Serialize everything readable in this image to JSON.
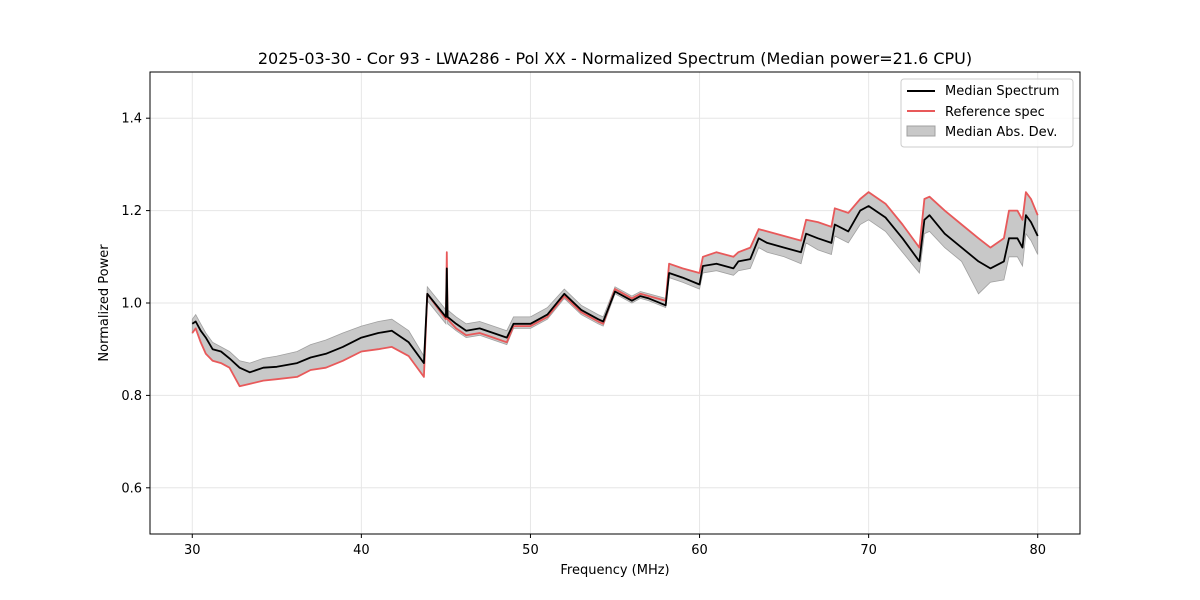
{
  "chart_data": {
    "type": "line",
    "title": "2025-03-30 - Cor 93 - LWA286 - Pol XX - Normalized Spectrum (Median power=21.6 CPU)",
    "xlabel": "Frequency (MHz)",
    "ylabel": "Normalized Power",
    "xlim": [
      27.5,
      82.5
    ],
    "ylim": [
      0.5,
      1.5
    ],
    "x_ticks": [
      30,
      40,
      50,
      60,
      70,
      80
    ],
    "x_tick_labels": [
      "30",
      "40",
      "50",
      "60",
      "70",
      "80"
    ],
    "y_ticks": [
      0.6,
      0.8,
      1.0,
      1.2,
      1.4
    ],
    "y_tick_labels": [
      "0.6",
      "0.8",
      "1.0",
      "1.2",
      "1.4"
    ],
    "grid": true,
    "legend_position": "top-right",
    "colors": {
      "median": "#000000",
      "reference": "#e8595a",
      "mad_fill": "#c8c8c8",
      "mad_edge": "#a0a0a0"
    },
    "series": [
      {
        "name": "Median Spectrum",
        "x": [
          30.0,
          30.2,
          30.5,
          30.8,
          31.2,
          31.7,
          32.2,
          32.8,
          33.4,
          34.2,
          35.0,
          36.2,
          37.0,
          37.9,
          38.9,
          40.0,
          41.0,
          41.8,
          42.8,
          43.7,
          43.9,
          45.0,
          45.05,
          45.1,
          45.6,
          46.2,
          47.0,
          47.8,
          48.6,
          49.0,
          50.0,
          51.0,
          52.0,
          53.0,
          54.0,
          54.3,
          55.0,
          56.0,
          56.5,
          57.0,
          58.0,
          58.2,
          59.0,
          60.0,
          60.2,
          61.0,
          62.0,
          62.3,
          63.0,
          63.5,
          64.0,
          65.0,
          66.0,
          66.3,
          67.0,
          67.8,
          68.0,
          68.8,
          69.5,
          70.0,
          71.0,
          72.0,
          73.0,
          73.3,
          73.6,
          74.5,
          75.5,
          76.5,
          77.2,
          78.0,
          78.3,
          78.8,
          79.1,
          79.3,
          79.6,
          80.0
        ],
        "y": [
          0.955,
          0.96,
          0.94,
          0.925,
          0.9,
          0.895,
          0.88,
          0.86,
          0.85,
          0.86,
          0.862,
          0.87,
          0.882,
          0.89,
          0.905,
          0.925,
          0.935,
          0.94,
          0.915,
          0.87,
          1.02,
          0.97,
          1.075,
          0.97,
          0.955,
          0.94,
          0.945,
          0.935,
          0.925,
          0.955,
          0.955,
          0.975,
          1.02,
          0.985,
          0.965,
          0.96,
          1.025,
          1.005,
          1.015,
          1.01,
          0.995,
          1.065,
          1.055,
          1.04,
          1.08,
          1.085,
          1.075,
          1.09,
          1.095,
          1.14,
          1.13,
          1.12,
          1.11,
          1.15,
          1.14,
          1.13,
          1.17,
          1.155,
          1.2,
          1.21,
          1.185,
          1.14,
          1.09,
          1.18,
          1.19,
          1.15,
          1.12,
          1.09,
          1.075,
          1.09,
          1.14,
          1.14,
          1.12,
          1.19,
          1.175,
          1.145
        ]
      },
      {
        "name": "Reference spec",
        "x": [
          30.0,
          30.2,
          30.5,
          30.8,
          31.2,
          31.7,
          32.2,
          32.8,
          33.4,
          34.2,
          35.0,
          36.2,
          37.0,
          37.9,
          38.9,
          40.0,
          41.0,
          41.8,
          42.8,
          43.7,
          43.9,
          45.0,
          45.05,
          45.1,
          45.6,
          46.2,
          47.0,
          47.8,
          48.6,
          49.0,
          50.0,
          51.0,
          52.0,
          53.0,
          54.0,
          54.3,
          55.0,
          56.0,
          56.5,
          57.0,
          58.0,
          58.2,
          59.0,
          60.0,
          60.2,
          61.0,
          62.0,
          62.3,
          63.0,
          63.5,
          64.0,
          65.0,
          66.0,
          66.3,
          67.0,
          67.8,
          68.0,
          68.8,
          69.5,
          70.0,
          71.0,
          72.0,
          73.0,
          73.3,
          73.6,
          74.5,
          75.5,
          76.5,
          77.2,
          78.0,
          78.3,
          78.8,
          79.1,
          79.3,
          79.6,
          80.0
        ],
        "y": [
          0.935,
          0.945,
          0.915,
          0.89,
          0.875,
          0.87,
          0.86,
          0.82,
          0.825,
          0.832,
          0.835,
          0.84,
          0.855,
          0.86,
          0.875,
          0.895,
          0.9,
          0.905,
          0.885,
          0.84,
          1.02,
          0.965,
          1.11,
          0.965,
          0.945,
          0.93,
          0.935,
          0.925,
          0.915,
          0.95,
          0.95,
          0.97,
          1.015,
          0.98,
          0.96,
          0.955,
          1.03,
          1.01,
          1.02,
          1.015,
          1.005,
          1.085,
          1.075,
          1.065,
          1.1,
          1.11,
          1.1,
          1.11,
          1.12,
          1.16,
          1.155,
          1.145,
          1.135,
          1.18,
          1.175,
          1.165,
          1.205,
          1.195,
          1.225,
          1.24,
          1.215,
          1.17,
          1.12,
          1.225,
          1.23,
          1.2,
          1.17,
          1.14,
          1.12,
          1.14,
          1.2,
          1.2,
          1.18,
          1.24,
          1.225,
          1.19
        ]
      },
      {
        "name": "Median Abs. Dev.",
        "x": [
          30.0,
          30.2,
          30.5,
          30.8,
          31.2,
          31.7,
          32.2,
          32.8,
          33.4,
          34.2,
          35.0,
          36.2,
          37.0,
          37.9,
          38.9,
          40.0,
          41.0,
          41.8,
          42.8,
          43.7,
          43.9,
          45.0,
          45.05,
          45.1,
          45.6,
          46.2,
          47.0,
          47.8,
          48.6,
          49.0,
          50.0,
          51.0,
          52.0,
          53.0,
          54.0,
          54.3,
          55.0,
          56.0,
          56.5,
          57.0,
          58.0,
          58.2,
          59.0,
          60.0,
          60.2,
          61.0,
          62.0,
          62.3,
          63.0,
          63.5,
          64.0,
          65.0,
          66.0,
          66.3,
          67.0,
          67.8,
          68.0,
          68.8,
          69.5,
          70.0,
          71.0,
          72.0,
          73.0,
          73.3,
          73.6,
          74.5,
          75.5,
          76.5,
          77.2,
          78.0,
          78.3,
          78.8,
          79.1,
          79.3,
          79.6,
          80.0
        ],
        "lower": [
          0.935,
          0.945,
          0.915,
          0.89,
          0.875,
          0.87,
          0.86,
          0.82,
          0.825,
          0.832,
          0.835,
          0.84,
          0.855,
          0.86,
          0.875,
          0.895,
          0.9,
          0.905,
          0.885,
          0.84,
          1.005,
          0.955,
          1.06,
          0.955,
          0.94,
          0.925,
          0.93,
          0.92,
          0.91,
          0.945,
          0.945,
          0.965,
          1.01,
          0.975,
          0.955,
          0.95,
          1.02,
          1.0,
          1.01,
          1.005,
          0.99,
          1.055,
          1.045,
          1.03,
          1.065,
          1.07,
          1.06,
          1.07,
          1.075,
          1.12,
          1.11,
          1.1,
          1.085,
          1.13,
          1.115,
          1.105,
          1.145,
          1.13,
          1.17,
          1.18,
          1.155,
          1.11,
          1.065,
          1.15,
          1.155,
          1.12,
          1.09,
          1.02,
          1.045,
          1.05,
          1.1,
          1.1,
          1.08,
          1.15,
          1.135,
          1.105
        ],
        "upper": [
          0.965,
          0.975,
          0.955,
          0.935,
          0.915,
          0.905,
          0.895,
          0.875,
          0.87,
          0.88,
          0.885,
          0.895,
          0.91,
          0.92,
          0.935,
          0.95,
          0.96,
          0.965,
          0.94,
          0.885,
          1.035,
          0.985,
          1.09,
          0.985,
          0.97,
          0.955,
          0.96,
          0.95,
          0.94,
          0.97,
          0.97,
          0.99,
          1.03,
          0.995,
          0.975,
          0.97,
          1.035,
          1.015,
          1.025,
          1.02,
          1.01,
          1.085,
          1.075,
          1.065,
          1.1,
          1.11,
          1.1,
          1.11,
          1.12,
          1.16,
          1.155,
          1.145,
          1.135,
          1.18,
          1.175,
          1.165,
          1.205,
          1.195,
          1.225,
          1.24,
          1.215,
          1.17,
          1.12,
          1.225,
          1.23,
          1.2,
          1.17,
          1.14,
          1.12,
          1.14,
          1.2,
          1.2,
          1.18,
          1.24,
          1.225,
          1.19
        ]
      }
    ]
  }
}
